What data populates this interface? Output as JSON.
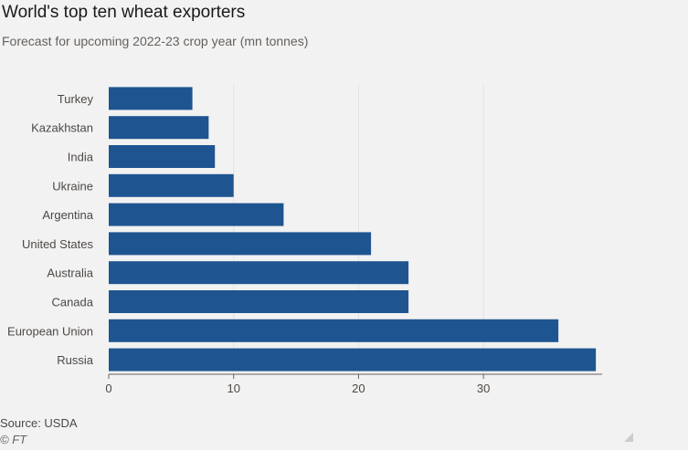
{
  "chart_data": {
    "type": "bar",
    "orientation": "horizontal",
    "title": "World's top ten wheat exporters",
    "subtitle": "Forecast for upcoming 2022-23 crop year (mn tonnes)",
    "categories": [
      "Turkey",
      "Kazakhstan",
      "India",
      "Ukraine",
      "Argentina",
      "United States",
      "Australia",
      "Canada",
      "European Union",
      "Russia"
    ],
    "values": [
      6.7,
      8,
      8.5,
      10,
      14,
      21,
      24,
      24,
      36,
      39
    ],
    "xlim": [
      0,
      39.5
    ],
    "xticks": [
      0,
      10,
      20,
      30
    ],
    "xtick_labels": [
      "0",
      "10",
      "20",
      "30"
    ],
    "grid": true,
    "bar_color": "#1e5591",
    "grid_color": "#e3e3e3",
    "axis_color": "#66605c"
  },
  "footer": {
    "source": "Source: USDA",
    "credit": "© FT"
  }
}
